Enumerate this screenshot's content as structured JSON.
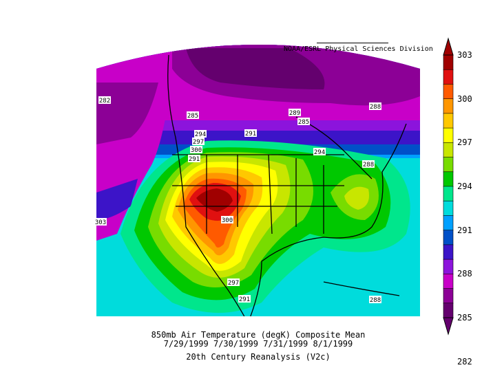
{
  "credit": "NOAA/ESRL Physical Sciences Division",
  "caption": {
    "line1": "850mb Air Temperature (degK) Composite Mean",
    "line2": "7/29/1999 7/30/1999 7/31/1999 8/1/1999",
    "line3": "20th Century Reanalysis (V2c)"
  },
  "colorbar": {
    "ticks": [
      "303",
      "300",
      "297",
      "294",
      "291",
      "288",
      "285",
      "282"
    ],
    "colors": [
      "#a00000",
      "#e01010",
      "#ff5a00",
      "#ff9600",
      "#ffc800",
      "#ffff00",
      "#c8e600",
      "#78dc00",
      "#00c800",
      "#00e68c",
      "#00dcdc",
      "#00a0ff",
      "#0050c8",
      "#3c14c8",
      "#8c14dc",
      "#c800c8",
      "#8c0096",
      "#64006e"
    ]
  },
  "contour_labels": [
    "282",
    "285",
    "289",
    "285",
    "288",
    "291",
    "294",
    "297",
    "300",
    "291",
    "294",
    "288",
    "303",
    "300",
    "297",
    "291",
    "288"
  ]
}
